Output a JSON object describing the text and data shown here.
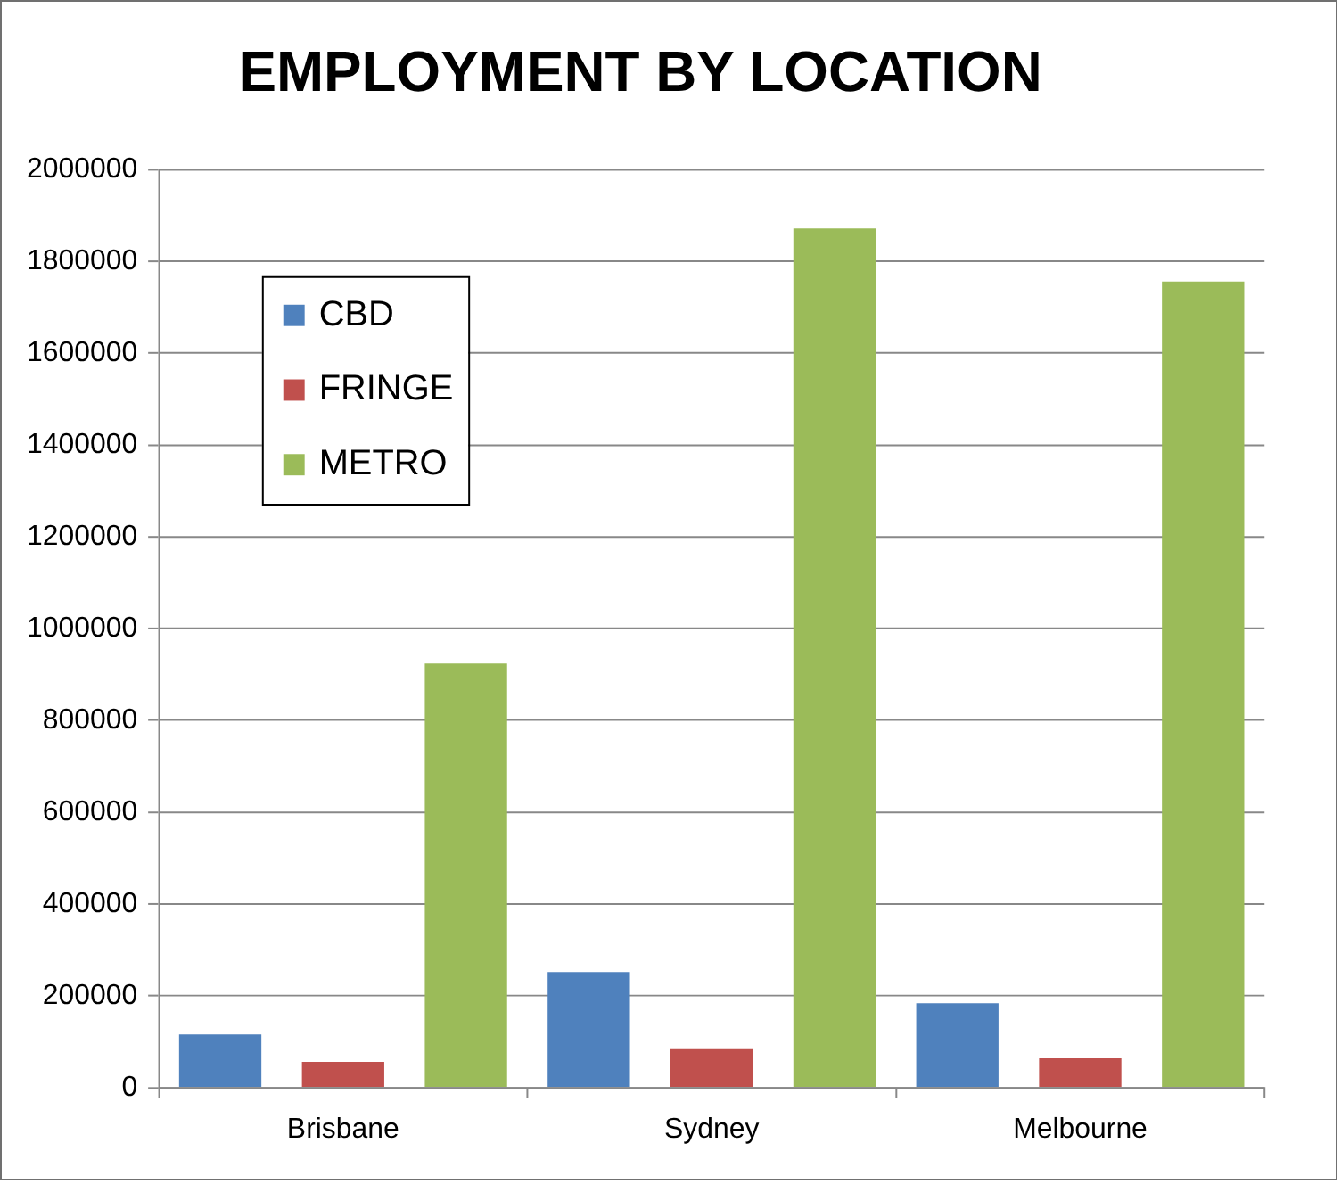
{
  "chart_data": {
    "type": "bar",
    "title": "EMPLOYMENT BY LOCATION",
    "categories": [
      "Brisbane",
      "Sydney",
      "Melbourne"
    ],
    "series": [
      {
        "name": "CBD",
        "color": "#4f81bd",
        "values": [
          116000,
          252000,
          184000
        ]
      },
      {
        "name": "FRINGE",
        "color": "#c0504d",
        "values": [
          56000,
          84000,
          64000
        ]
      },
      {
        "name": "METRO",
        "color": "#9bbb59",
        "values": [
          924000,
          1872000,
          1756000
        ]
      }
    ],
    "ylim": [
      0,
      2000000
    ],
    "yticks": [
      0,
      200000,
      400000,
      600000,
      800000,
      1000000,
      1200000,
      1400000,
      1600000,
      1800000,
      2000000
    ],
    "grid": "y",
    "legend": "top left"
  }
}
